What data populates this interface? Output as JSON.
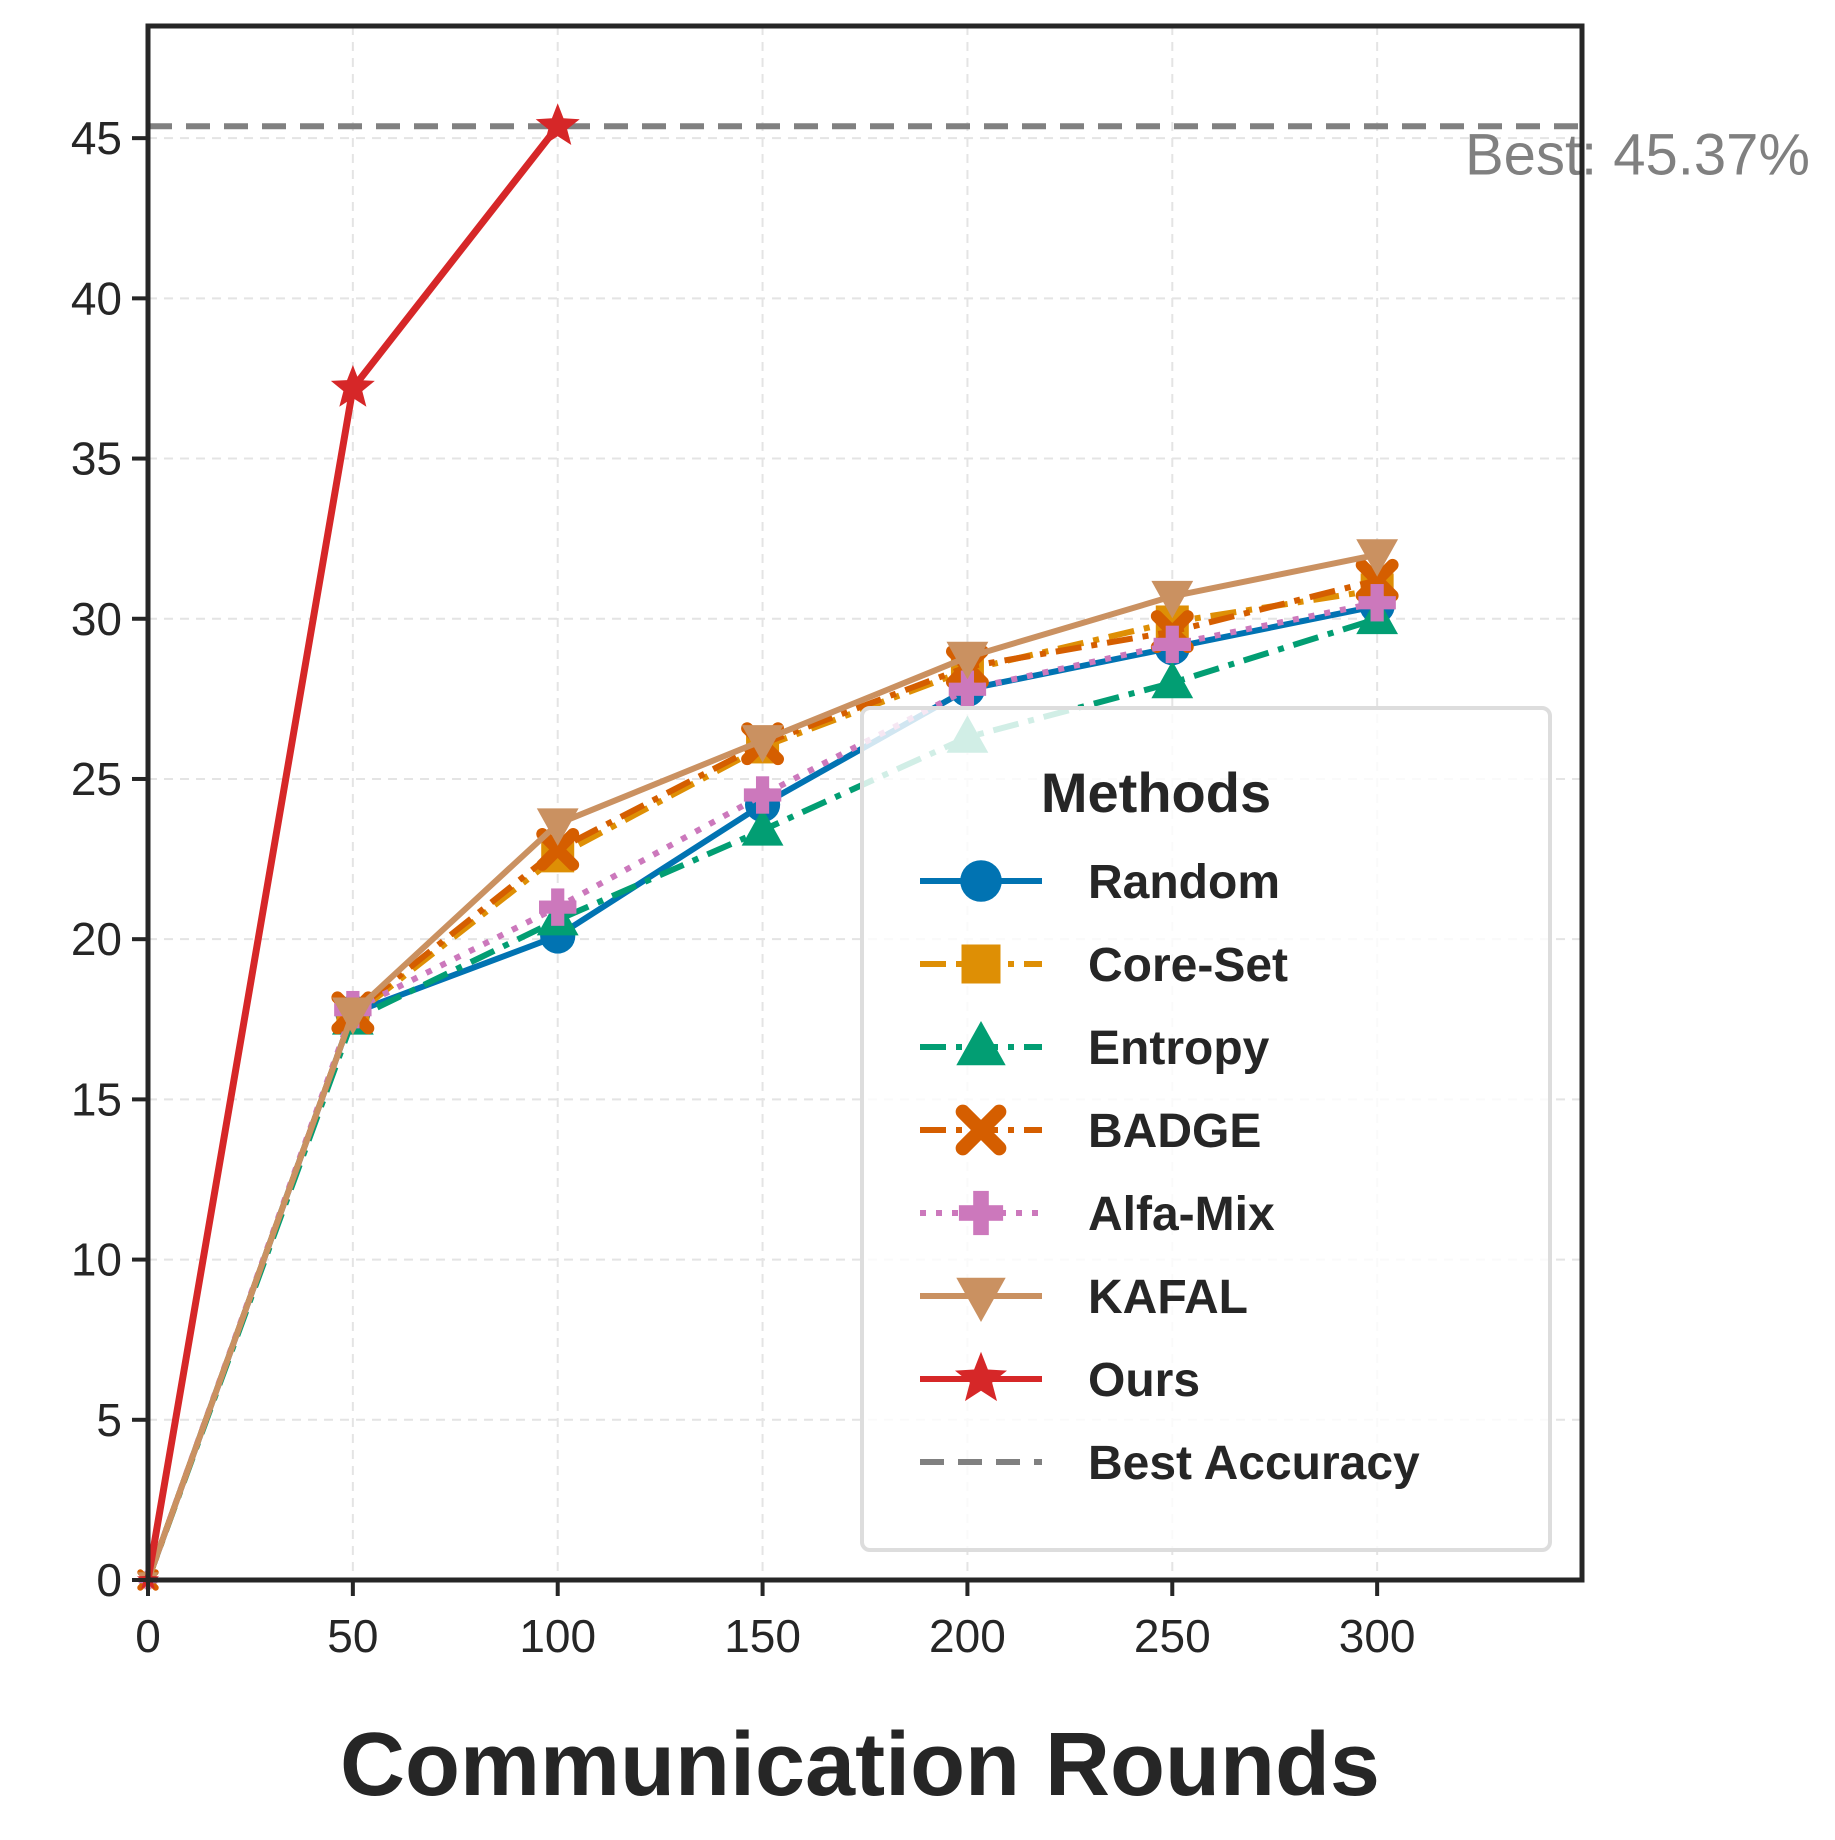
{
  "chart_data": {
    "type": "line",
    "xlabel": "Communication Rounds",
    "ylabel": "",
    "xlim": [
      0,
      350
    ],
    "ylim": [
      0,
      48.5
    ],
    "xticks": [
      0,
      50,
      100,
      150,
      200,
      250,
      300
    ],
    "yticks": [
      0,
      5,
      10,
      15,
      20,
      25,
      30,
      35,
      40,
      45
    ],
    "grid": true,
    "legend": {
      "title": "Methods",
      "position": "lower-right"
    },
    "series": [
      {
        "name": "Random",
        "color": "#0173b2",
        "dash": "solid",
        "marker": "circle",
        "x": [
          0,
          50,
          100,
          150,
          200,
          250,
          300
        ],
        "y": [
          0,
          17.7,
          20.1,
          24.2,
          27.8,
          29.1,
          30.4
        ]
      },
      {
        "name": "Core-Set",
        "color": "#de8f05",
        "dash": "dashdot",
        "marker": "square",
        "x": [
          0,
          50,
          100,
          150,
          200,
          250,
          300
        ],
        "y": [
          0,
          17.6,
          22.6,
          26.0,
          28.4,
          29.9,
          30.9
        ]
      },
      {
        "name": "Entropy",
        "color": "#029e73",
        "dash": "dashdot",
        "marker": "triangle-up",
        "x": [
          0,
          50,
          100,
          150,
          200,
          250,
          300
        ],
        "y": [
          0,
          17.5,
          20.6,
          23.4,
          26.3,
          28.0,
          30.0
        ]
      },
      {
        "name": "BADGE",
        "color": "#d55e00",
        "dash": "dashdot",
        "marker": "x",
        "x": [
          0,
          50,
          100,
          150,
          200,
          250,
          300
        ],
        "y": [
          0,
          17.7,
          22.8,
          26.1,
          28.5,
          29.6,
          31.2
        ]
      },
      {
        "name": "Alfa-Mix",
        "color": "#cc78bc",
        "dash": "dotted",
        "marker": "plus",
        "x": [
          0,
          50,
          100,
          150,
          200,
          250,
          300
        ],
        "y": [
          0,
          17.8,
          21.0,
          24.5,
          27.8,
          29.2,
          30.5
        ]
      },
      {
        "name": "KAFAL",
        "color": "#ca9161",
        "dash": "solid",
        "marker": "triangle-down",
        "x": [
          0,
          50,
          100,
          150,
          200,
          250,
          300
        ],
        "y": [
          0,
          17.7,
          23.6,
          26.2,
          28.8,
          30.7,
          32.0
        ]
      },
      {
        "name": "Ours",
        "color": "#d62728",
        "dash": "solid",
        "marker": "star",
        "x": [
          0,
          50,
          100
        ],
        "y": [
          0,
          37.2,
          45.37
        ]
      }
    ],
    "reference_line": {
      "name": "Best Accuracy",
      "value": 45.37,
      "color": "#808080",
      "label": "Best: 45.37%"
    }
  }
}
